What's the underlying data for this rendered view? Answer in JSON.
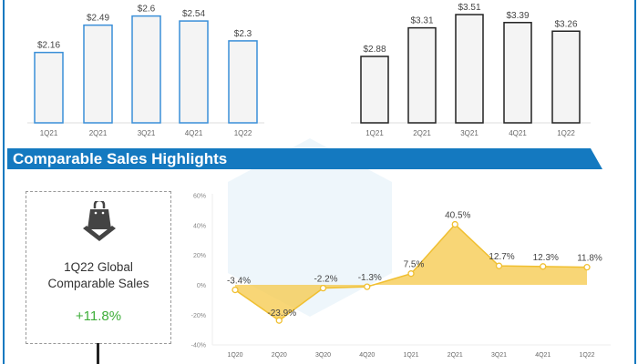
{
  "banner": {
    "title": "Comparable Sales Highlights",
    "color": "#1479c0"
  },
  "highlight": {
    "title_line1": "1Q22 Global",
    "title_line2": "Comparable Sales",
    "value": "+11.8%",
    "icon": "shopping-bag-icon",
    "value_color": "#3fae3a"
  },
  "chart_data": [
    {
      "type": "bar",
      "categories": [
        "1Q21",
        "2Q21",
        "3Q21",
        "4Q21",
        "1Q22"
      ],
      "values": [
        2.16,
        2.49,
        2.6,
        2.54,
        2.3
      ],
      "labels": [
        "$2.16",
        "$2.49",
        "$2.6",
        "$2.54",
        "$2.3"
      ],
      "outline_color": "#3a8fd8"
    },
    {
      "type": "bar",
      "categories": [
        "1Q21",
        "2Q21",
        "3Q21",
        "4Q21",
        "1Q22"
      ],
      "values": [
        2.88,
        3.31,
        3.51,
        3.39,
        3.26
      ],
      "labels": [
        "$2.88",
        "$3.31",
        "$3.51",
        "$3.39",
        "$3.26"
      ],
      "outline_color": "#222222"
    },
    {
      "type": "area",
      "categories": [
        "1Q20",
        "2Q20",
        "3Q20",
        "4Q20",
        "1Q21",
        "2Q21",
        "3Q21",
        "4Q21",
        "1Q22"
      ],
      "values": [
        -3.4,
        -23.9,
        -2.2,
        -1.3,
        7.5,
        40.5,
        12.7,
        12.3,
        11.8
      ],
      "labels": [
        "-3.4%",
        "-23.9%",
        "-2.2%",
        "-1.3%",
        "7.5%",
        "40.5%",
        "12.7%",
        "12.3%",
        "11.8%"
      ],
      "ylim": [
        -40,
        60
      ],
      "yticks": [
        "60%",
        "40%",
        "20%",
        "0%",
        "-20%",
        "-40%"
      ],
      "ytick_values": [
        60,
        40,
        20,
        0,
        -20,
        -40
      ],
      "color": "#f5c848"
    }
  ]
}
